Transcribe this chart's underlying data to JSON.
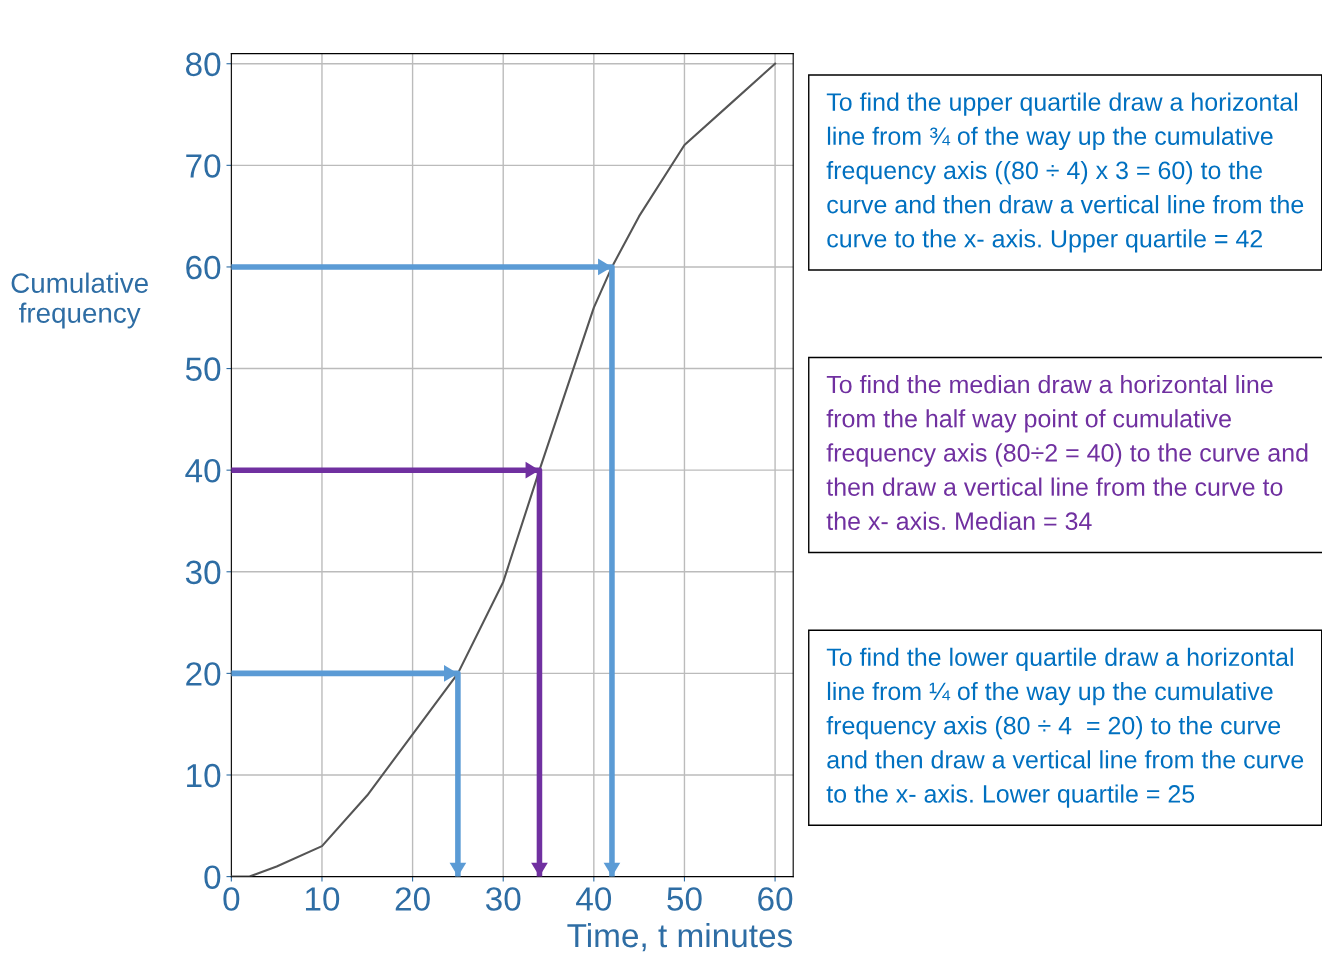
{
  "chart_data": {
    "type": "line",
    "xlabel": "Time, t minutes",
    "ylabel": "Cumulative frequency",
    "xlim": [
      0,
      62
    ],
    "ylim": [
      0,
      81
    ],
    "xticks": [
      0,
      10,
      20,
      30,
      40,
      50,
      60
    ],
    "yticks": [
      0,
      10,
      20,
      30,
      40,
      50,
      60,
      70,
      80
    ],
    "grid": true,
    "series": [
      {
        "color": "#555555",
        "x": [
          0,
          2,
          5,
          10,
          15,
          20,
          25,
          30,
          34,
          40,
          42,
          45,
          50,
          55,
          60
        ],
        "values": [
          0,
          0,
          1,
          3,
          8,
          14,
          20,
          29,
          40,
          56,
          60,
          65,
          72,
          76,
          80
        ]
      },
      {
        "color": "#5b9bd5",
        "x": [
          0,
          42,
          42
        ],
        "values": [
          60,
          60,
          0
        ]
      },
      {
        "color": "#7030a0",
        "x": [
          0,
          34,
          34
        ],
        "values": [
          40,
          40,
          0
        ]
      },
      {
        "color": "#5b9bd5",
        "x": [
          0,
          25,
          25
        ],
        "values": [
          20,
          20,
          0
        ]
      }
    ],
    "annotations": [
      "To find the upper quartile draw a horizontal line from ¾ of the way up the cumulative frequency axis ((80 ÷ 4) x 3 = 60) to the curve and then draw a vertical line from the curve to the x- axis. Upper quartile = 42",
      "To find the median draw a horizontal line from the half way point of cumulative frequency axis (80÷2 = 40) to the curve and then draw a vertical line from the curve to the x- axis. Median = 34",
      "To find the lower quartile draw a horizontal line from ¼ of the way up the cumulative frequency axis (80 ÷ 4  = 20) to the curve and then draw a vertical line from the curve to the x- axis. Lower quartile = 25"
    ]
  }
}
